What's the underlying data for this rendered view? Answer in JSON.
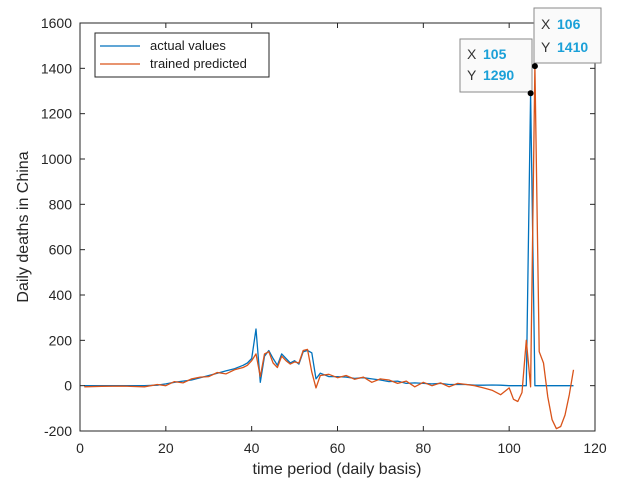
{
  "chart_data": {
    "type": "line",
    "xlabel": "time period (daily basis)",
    "ylabel": "Daily deaths in China",
    "xlim": [
      0,
      120
    ],
    "ylim": [
      -200,
      1600
    ],
    "xticks": [
      0,
      20,
      40,
      60,
      80,
      100,
      120
    ],
    "yticks": [
      -200,
      0,
      200,
      400,
      600,
      800,
      1000,
      1200,
      1400,
      1600
    ],
    "grid": false,
    "legend_position": "top-left",
    "series": [
      {
        "name": "actual values",
        "color": "#0072bd",
        "points": [
          [
            1,
            0
          ],
          [
            5,
            0
          ],
          [
            10,
            0
          ],
          [
            15,
            0
          ],
          [
            18,
            2
          ],
          [
            20,
            8
          ],
          [
            22,
            15
          ],
          [
            24,
            20
          ],
          [
            26,
            25
          ],
          [
            28,
            35
          ],
          [
            30,
            45
          ],
          [
            32,
            55
          ],
          [
            34,
            65
          ],
          [
            36,
            75
          ],
          [
            38,
            90
          ],
          [
            39,
            100
          ],
          [
            40,
            120
          ],
          [
            41,
            250
          ],
          [
            42,
            15
          ],
          [
            43,
            130
          ],
          [
            44,
            155
          ],
          [
            45,
            120
          ],
          [
            46,
            90
          ],
          [
            47,
            140
          ],
          [
            48,
            120
          ],
          [
            49,
            100
          ],
          [
            50,
            110
          ],
          [
            51,
            95
          ],
          [
            52,
            150
          ],
          [
            53,
            155
          ],
          [
            54,
            145
          ],
          [
            55,
            30
          ],
          [
            56,
            55
          ],
          [
            58,
            40
          ],
          [
            60,
            40
          ],
          [
            62,
            38
          ],
          [
            64,
            32
          ],
          [
            66,
            35
          ],
          [
            68,
            30
          ],
          [
            70,
            25
          ],
          [
            72,
            18
          ],
          [
            74,
            20
          ],
          [
            76,
            10
          ],
          [
            78,
            12
          ],
          [
            80,
            10
          ],
          [
            82,
            8
          ],
          [
            84,
            10
          ],
          [
            86,
            5
          ],
          [
            88,
            5
          ],
          [
            90,
            5
          ],
          [
            92,
            2
          ],
          [
            94,
            2
          ],
          [
            96,
            3
          ],
          [
            98,
            2
          ],
          [
            100,
            0
          ],
          [
            102,
            0
          ],
          [
            104,
            0
          ],
          [
            105,
            1290
          ],
          [
            106,
            0
          ],
          [
            108,
            0
          ],
          [
            110,
            0
          ],
          [
            112,
            0
          ],
          [
            114,
            0
          ],
          [
            115,
            0
          ]
        ]
      },
      {
        "name": "trained predicted",
        "color": "#d95319",
        "points": [
          [
            1,
            -5
          ],
          [
            5,
            -3
          ],
          [
            10,
            -2
          ],
          [
            15,
            -5
          ],
          [
            18,
            5
          ],
          [
            20,
            0
          ],
          [
            22,
            18
          ],
          [
            24,
            12
          ],
          [
            26,
            30
          ],
          [
            28,
            38
          ],
          [
            30,
            40
          ],
          [
            32,
            58
          ],
          [
            34,
            52
          ],
          [
            36,
            70
          ],
          [
            38,
            80
          ],
          [
            39,
            90
          ],
          [
            40,
            110
          ],
          [
            41,
            140
          ],
          [
            42,
            40
          ],
          [
            43,
            140
          ],
          [
            44,
            150
          ],
          [
            45,
            100
          ],
          [
            46,
            80
          ],
          [
            47,
            130
          ],
          [
            48,
            110
          ],
          [
            49,
            95
          ],
          [
            50,
            105
          ],
          [
            51,
            100
          ],
          [
            52,
            155
          ],
          [
            53,
            160
          ],
          [
            54,
            60
          ],
          [
            55,
            -10
          ],
          [
            56,
            45
          ],
          [
            58,
            50
          ],
          [
            60,
            35
          ],
          [
            62,
            45
          ],
          [
            64,
            28
          ],
          [
            66,
            38
          ],
          [
            68,
            15
          ],
          [
            70,
            30
          ],
          [
            72,
            25
          ],
          [
            74,
            10
          ],
          [
            76,
            20
          ],
          [
            78,
            -5
          ],
          [
            80,
            15
          ],
          [
            82,
            0
          ],
          [
            84,
            12
          ],
          [
            86,
            -5
          ],
          [
            88,
            10
          ],
          [
            90,
            5
          ],
          [
            92,
            0
          ],
          [
            94,
            -10
          ],
          [
            96,
            -20
          ],
          [
            98,
            -40
          ],
          [
            100,
            -10
          ],
          [
            101,
            -60
          ],
          [
            102,
            -70
          ],
          [
            103,
            -30
          ],
          [
            104,
            200
          ],
          [
            105,
            -5
          ],
          [
            106,
            1410
          ],
          [
            107,
            150
          ],
          [
            108,
            100
          ],
          [
            109,
            -50
          ],
          [
            110,
            -150
          ],
          [
            111,
            -190
          ],
          [
            112,
            -180
          ],
          [
            113,
            -130
          ],
          [
            114,
            -40
          ],
          [
            115,
            70
          ]
        ]
      }
    ],
    "datatips": [
      {
        "x_label": "X",
        "x_value": "105",
        "y_label": "Y",
        "y_value": "1290",
        "x": 105,
        "y": 1290
      },
      {
        "x_label": "X",
        "x_value": "106",
        "y_label": "Y",
        "y_value": "1410",
        "x": 106,
        "y": 1410
      }
    ]
  }
}
